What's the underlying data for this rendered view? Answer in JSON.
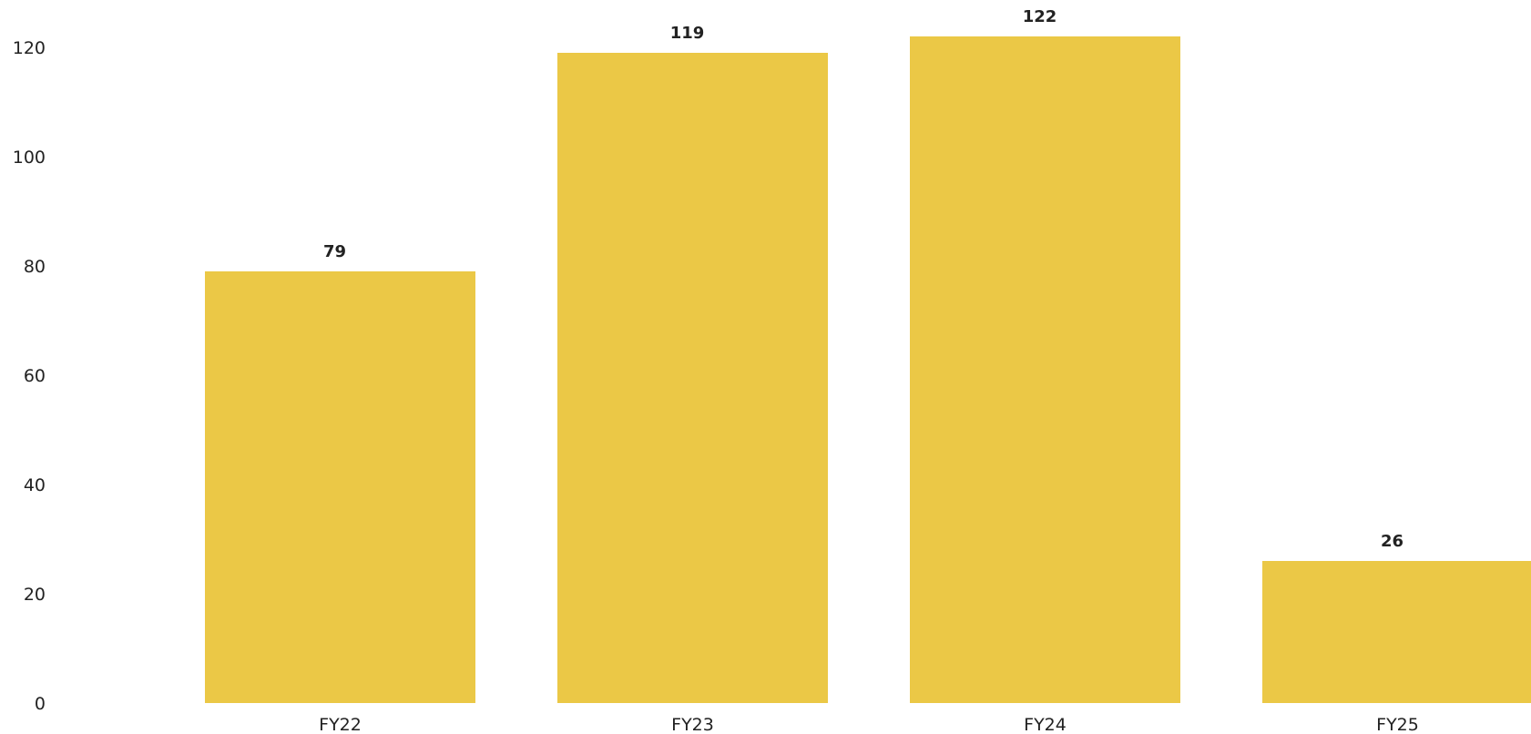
{
  "chart_data": {
    "type": "bar",
    "categories": [
      "FY22",
      "FY23",
      "FY24",
      "FY25"
    ],
    "values": [
      79,
      119,
      122,
      26
    ],
    "data_labels": [
      "79",
      "119",
      "122",
      "26"
    ],
    "yticks": [
      0,
      20,
      40,
      60,
      80,
      100,
      120
    ],
    "ylim": [
      0,
      129
    ],
    "title": "",
    "xlabel": "",
    "ylabel": "",
    "grid": false,
    "bar_color": "#EBC846"
  }
}
